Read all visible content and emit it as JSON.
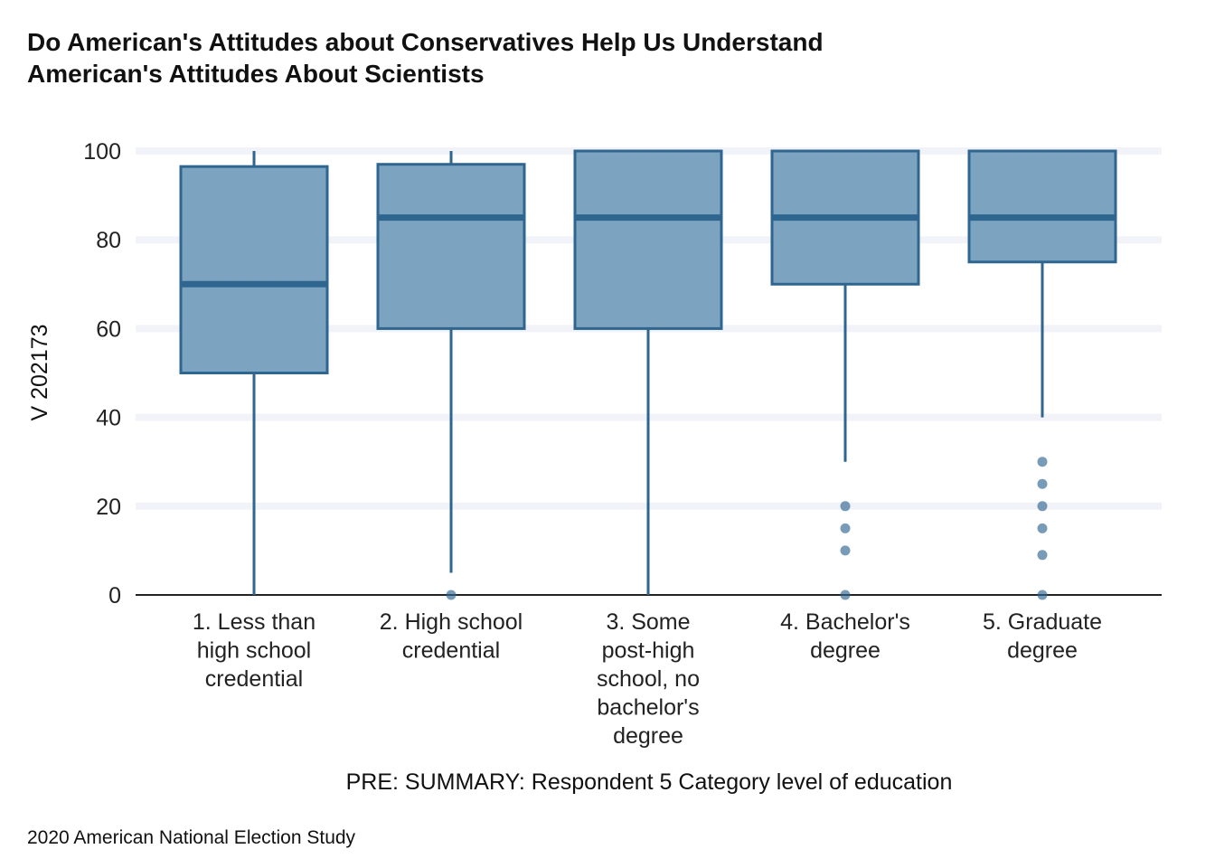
{
  "chart_data": {
    "type": "boxplot",
    "title": [
      "Do American's Attitudes about Conservatives Help Us Understand",
      "American's Attitudes About Scientists"
    ],
    "xlabel": "PRE: SUMMARY: Respondent 5 Category level of education",
    "ylabel": "V 202173",
    "caption": "2020 American National Election Study",
    "ylim": [
      0,
      100
    ],
    "yticks": [
      "0",
      "20",
      "40",
      "60",
      "80",
      "100"
    ],
    "grid": "horizontal",
    "colors": {
      "fill": "#7ca3c0",
      "stroke": "#2f6690",
      "grid": "#f2f3f8",
      "axis": "#222222"
    },
    "categories": [
      {
        "label": [
          "1. Less than",
          "high school",
          "credential"
        ],
        "whisker_low": 0,
        "q1": 50,
        "median": 70,
        "q3": 96.5,
        "whisker_high": 100,
        "outliers": []
      },
      {
        "label": [
          "2. High school",
          "credential"
        ],
        "whisker_low": 5,
        "q1": 60,
        "median": 85,
        "q3": 97,
        "whisker_high": 100,
        "outliers": [
          0
        ]
      },
      {
        "label": [
          "3. Some",
          "post-high",
          "school, no",
          "bachelor's",
          "degree"
        ],
        "whisker_low": 0,
        "q1": 60,
        "median": 85,
        "q3": 100,
        "whisker_high": 100,
        "outliers": []
      },
      {
        "label": [
          "4. Bachelor's",
          "degree"
        ],
        "whisker_low": 30,
        "q1": 70,
        "median": 85,
        "q3": 100,
        "whisker_high": 100,
        "outliers": [
          20,
          15,
          10,
          0
        ]
      },
      {
        "label": [
          "5. Graduate",
          "degree"
        ],
        "whisker_low": 40,
        "q1": 75,
        "median": 85,
        "q3": 100,
        "whisker_high": 100,
        "outliers": [
          30,
          25,
          20,
          15,
          9,
          0
        ]
      }
    ]
  }
}
